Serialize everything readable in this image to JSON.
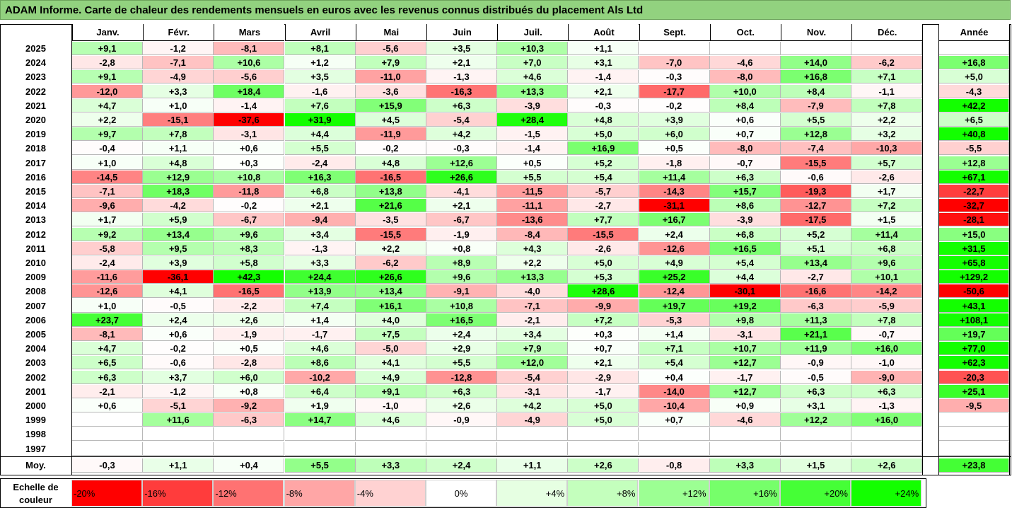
{
  "title": "ADAM Informe. Carte de chaleur des rendements mensuels en euros avec les revenus connus distribués du placement Als Ltd",
  "chart_data": {
    "type": "heatmap",
    "months": [
      "Janv.",
      "Févr.",
      "Mars",
      "Avril",
      "Mai",
      "Juin",
      "Juil.",
      "Août",
      "Sept.",
      "Oct.",
      "Nov.",
      "Déc."
    ],
    "year_header": "Année",
    "rows": [
      {
        "year": "2025",
        "values": [
          "+9,1",
          "-1,2",
          "-8,1",
          "+8,1",
          "-5,6",
          "+3,5",
          "+10,3",
          "+1,1",
          "",
          "",
          "",
          ""
        ],
        "annual": ""
      },
      {
        "year": "2024",
        "values": [
          "-2,8",
          "-7,1",
          "+10,6",
          "+1,2",
          "+7,9",
          "+2,1",
          "+7,0",
          "+3,1",
          "-7,0",
          "-4,6",
          "+14,0",
          "-6,2"
        ],
        "annual": "+16,8"
      },
      {
        "year": "2023",
        "values": [
          "+9,1",
          "-4,9",
          "-5,6",
          "+3,5",
          "-11,0",
          "-1,3",
          "+4,6",
          "-1,4",
          "-0,3",
          "-8,0",
          "+16,8",
          "+7,1"
        ],
        "annual": "+5,0"
      },
      {
        "year": "2022",
        "values": [
          "-12,0",
          "+3,3",
          "+18,4",
          "-1,6",
          "-3,6",
          "-16,3",
          "+13,3",
          "+2,1",
          "-17,7",
          "+10,0",
          "+8,4",
          "-1,1"
        ],
        "annual": "-4,3"
      },
      {
        "year": "2021",
        "values": [
          "+4,7",
          "+1,0",
          "-1,4",
          "+7,6",
          "+15,9",
          "+6,3",
          "-3,9",
          "-0,3",
          "-0,2",
          "+8,4",
          "-7,9",
          "+7,8"
        ],
        "annual": "+42,2"
      },
      {
        "year": "2020",
        "values": [
          "+2,2",
          "-15,1",
          "-37,6",
          "+31,9",
          "+4,5",
          "-5,4",
          "+28,4",
          "+4,8",
          "+3,9",
          "+0,6",
          "+5,5",
          "+2,2"
        ],
        "annual": "+6,5"
      },
      {
        "year": "2019",
        "values": [
          "+9,7",
          "+7,8",
          "-3,1",
          "+4,4",
          "-11,9",
          "+4,2",
          "-1,5",
          "+5,0",
          "+6,0",
          "+0,7",
          "+12,8",
          "+3,2"
        ],
        "annual": "+40,8"
      },
      {
        "year": "2018",
        "values": [
          "-0,4",
          "+1,1",
          "+0,6",
          "+5,5",
          "-0,2",
          "-0,3",
          "-1,4",
          "+16,9",
          "+0,5",
          "-8,0",
          "-7,4",
          "-10,3"
        ],
        "annual": "-5,5"
      },
      {
        "year": "2017",
        "values": [
          "+1,0",
          "+4,8",
          "+0,3",
          "-2,4",
          "+4,8",
          "+12,6",
          "+0,5",
          "+5,2",
          "-1,8",
          "-0,7",
          "-15,5",
          "+5,7"
        ],
        "annual": "+12,8"
      },
      {
        "year": "2016",
        "values": [
          "-14,5",
          "+12,9",
          "+10,8",
          "+16,3",
          "-16,5",
          "+26,6",
          "+5,5",
          "+5,4",
          "+11,4",
          "+6,3",
          "-0,6",
          "-2,6"
        ],
        "annual": "+67,1"
      },
      {
        "year": "2015",
        "values": [
          "-7,1",
          "+18,3",
          "-11,8",
          "+6,8",
          "+13,8",
          "-4,1",
          "-11,5",
          "-5,7",
          "-14,3",
          "+15,7",
          "-19,3",
          "+1,7"
        ],
        "annual": "-22,7"
      },
      {
        "year": "2014",
        "values": [
          "-9,6",
          "-4,2",
          "-0,2",
          "+2,1",
          "+21,6",
          "+2,1",
          "-11,1",
          "-2,7",
          "-31,1",
          "+8,6",
          "-12,7",
          "+7,2"
        ],
        "annual": "-32,7"
      },
      {
        "year": "2013",
        "values": [
          "+1,7",
          "+5,9",
          "-6,7",
          "-9,4",
          "-3,5",
          "-6,7",
          "-13,6",
          "+7,7",
          "+16,7",
          "-3,9",
          "-17,5",
          "+1,5"
        ],
        "annual": "-28,1"
      },
      {
        "year": "2012",
        "values": [
          "+9,2",
          "+13,4",
          "+9,6",
          "+3,4",
          "-15,5",
          "-1,9",
          "-8,4",
          "-15,5",
          "+2,4",
          "+6,8",
          "+5,2",
          "+11,4"
        ],
        "annual": "+15,0"
      },
      {
        "year": "2011",
        "values": [
          "-5,8",
          "+9,5",
          "+8,3",
          "-1,3",
          "+2,2",
          "+0,8",
          "+4,3",
          "-2,6",
          "-12,6",
          "+16,5",
          "+5,1",
          "+6,8"
        ],
        "annual": "+31,5"
      },
      {
        "year": "2010",
        "values": [
          "-2,4",
          "+3,9",
          "+5,8",
          "+3,3",
          "-6,2",
          "+8,9",
          "+2,2",
          "+5,0",
          "+4,9",
          "+5,4",
          "+13,4",
          "+9,6"
        ],
        "annual": "+65,8"
      },
      {
        "year": "2009",
        "values": [
          "-11,6",
          "-36,1",
          "+42,3",
          "+24,4",
          "+26,6",
          "+9,6",
          "+13,3",
          "+5,3",
          "+25,2",
          "+4,4",
          "-2,7",
          "+10,1"
        ],
        "annual": "+129,2"
      },
      {
        "year": "2008",
        "values": [
          "-12,6",
          "+4,1",
          "-16,5",
          "+13,9",
          "+13,4",
          "-9,1",
          "-4,0",
          "+28,6",
          "-12,4",
          "-30,1",
          "-16,6",
          "-14,2"
        ],
        "annual": "-50,6"
      },
      {
        "year": "2007",
        "values": [
          "+1,0",
          "-0,5",
          "-2,2",
          "+7,4",
          "+16,1",
          "+10,8",
          "-7,1",
          "-9,9",
          "+19,7",
          "+19,2",
          "-6,3",
          "-5,9"
        ],
        "annual": "+43,1"
      },
      {
        "year": "2006",
        "values": [
          "+23,7",
          "+2,4",
          "+2,6",
          "+1,4",
          "+4,0",
          "+16,5",
          "-2,1",
          "+7,2",
          "-5,3",
          "+9,8",
          "+11,3",
          "+7,8"
        ],
        "annual": "+108,1"
      },
      {
        "year": "2005",
        "values": [
          "-8,1",
          "+0,6",
          "-1,9",
          "-1,7",
          "+7,5",
          "+2,4",
          "+3,4",
          "+0,3",
          "+1,4",
          "-3,1",
          "+21,1",
          "-0,7"
        ],
        "annual": "+19,7"
      },
      {
        "year": "2004",
        "values": [
          "+4,7",
          "-0,2",
          "+0,5",
          "+4,6",
          "-5,0",
          "+2,9",
          "+7,9",
          "+0,7",
          "+7,1",
          "+10,7",
          "+11,9",
          "+16,0"
        ],
        "annual": "+77,0"
      },
      {
        "year": "2003",
        "values": [
          "+6,5",
          "-0,6",
          "-2,8",
          "+8,6",
          "+4,1",
          "+5,5",
          "+12,0",
          "+2,1",
          "+5,4",
          "+12,7",
          "-0,9",
          "-1,0"
        ],
        "annual": "+62,3"
      },
      {
        "year": "2002",
        "values": [
          "+6,3",
          "+3,7",
          "+6,0",
          "-10,2",
          "+4,9",
          "-12,8",
          "-5,4",
          "-2,9",
          "+0,4",
          "-1,7",
          "-0,5",
          "-9,0"
        ],
        "annual": "-20,3"
      },
      {
        "year": "2001",
        "values": [
          "-2,1",
          "-1,2",
          "+0,8",
          "+6,4",
          "+9,1",
          "+6,3",
          "-3,1",
          "-1,7",
          "-14,0",
          "+12,7",
          "+6,3",
          "+6,3"
        ],
        "annual": "+25,1"
      },
      {
        "year": "2000",
        "values": [
          "+0,6",
          "-5,1",
          "-9,2",
          "+1,9",
          "-1,0",
          "+2,6",
          "+4,2",
          "+5,0",
          "-10,4",
          "+0,9",
          "+3,1",
          "-1,3"
        ],
        "annual": "-9,5"
      },
      {
        "year": "1999",
        "values": [
          "",
          "+11,6",
          "-6,3",
          "+14,7",
          "+4,6",
          "-0,9",
          "-4,9",
          "+5,0",
          "+0,7",
          "-4,6",
          "+12,2",
          "+16,0"
        ],
        "annual": ""
      },
      {
        "year": "1998",
        "values": [
          "",
          "",
          "",
          "",
          "",
          "",
          "",
          "",
          "",
          "",
          "",
          ""
        ],
        "annual": ""
      },
      {
        "year": "1997",
        "values": [
          "",
          "",
          "",
          "",
          "",
          "",
          "",
          "",
          "",
          "",
          "",
          ""
        ],
        "annual": ""
      }
    ],
    "average": {
      "label": "Moy.",
      "values": [
        "-0,3",
        "+1,1",
        "+0,4",
        "+5,5",
        "+3,3",
        "+2,4",
        "+1,1",
        "+2,6",
        "-0,8",
        "+3,3",
        "+1,5",
        "+2,6"
      ],
      "annual": "+23,8"
    },
    "scale": {
      "label": "Echelle de couleur",
      "steps": [
        "-20%",
        "-16%",
        "-12%",
        "-8%",
        "-4%",
        "0%",
        "+4%",
        "+8%",
        "+12%",
        "+16%",
        "+20%",
        "+24%"
      ],
      "colors": [
        "#ff0000",
        "#ff3c3c",
        "#ff7272",
        "#ffa6a6",
        "#ffd2d2",
        "#ffffff",
        "#e6ffe2",
        "#c4ffbd",
        "#9cff93",
        "#76ff6a",
        "#45ff36",
        "#13ff00"
      ]
    }
  }
}
